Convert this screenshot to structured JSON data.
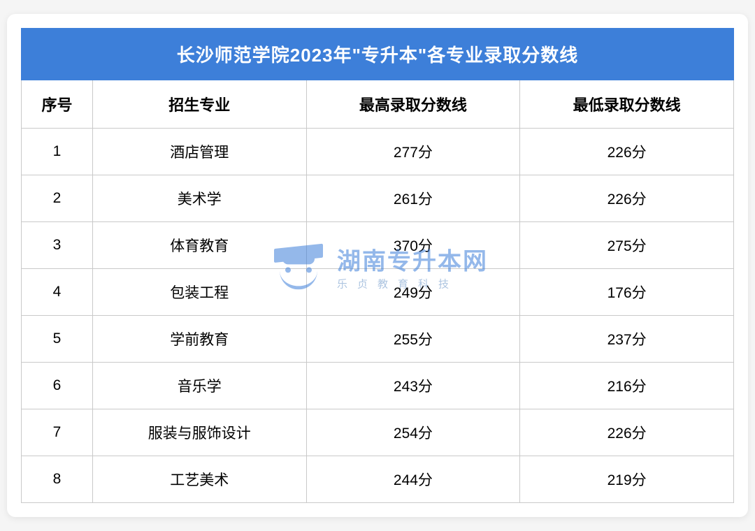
{
  "table": {
    "title": "长沙师范学院2023年\"专升本\"各专业录取分数线",
    "title_bg": "#3d7fd9",
    "title_color": "#ffffff",
    "title_fontsize": 26,
    "border_color": "#c9c9c9",
    "cell_fontsize": 21,
    "header_fontsize": 22,
    "columns": [
      {
        "key": "seq",
        "label": "序号",
        "width": "10%"
      },
      {
        "key": "major",
        "label": "招生专业",
        "width": "30%"
      },
      {
        "key": "max",
        "label": "最高录取分数线",
        "width": "30%"
      },
      {
        "key": "min",
        "label": "最低录取分数线",
        "width": "30%"
      }
    ],
    "rows": [
      {
        "seq": "1",
        "major": "酒店管理",
        "max": "277分",
        "min": "226分"
      },
      {
        "seq": "2",
        "major": "美术学",
        "max": "261分",
        "min": "226分"
      },
      {
        "seq": "3",
        "major": "体育教育",
        "max": "370分",
        "min": "275分"
      },
      {
        "seq": "4",
        "major": "包装工程",
        "max": "249分",
        "min": "176分"
      },
      {
        "seq": "5",
        "major": "学前教育",
        "max": "255分",
        "min": "237分"
      },
      {
        "seq": "6",
        "major": "音乐学",
        "max": "243分",
        "min": "216分"
      },
      {
        "seq": "7",
        "major": "服装与服饰设计",
        "max": "254分",
        "min": "226分"
      },
      {
        "seq": "8",
        "major": "工艺美术",
        "max": "244分",
        "min": "219分"
      }
    ]
  },
  "watermark": {
    "main_text": "湖南专升本网",
    "sub_text": "乐贞教育科技",
    "color": "#3d7fd9",
    "opacity": 0.55
  }
}
